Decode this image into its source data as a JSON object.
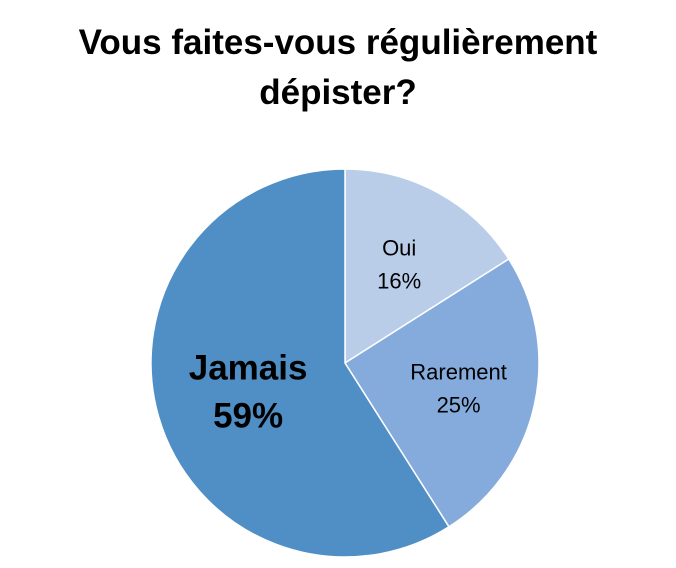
{
  "chart_data": {
    "type": "pie",
    "title_lines": [
      "Vous faites-vous régulièrement",
      "dépister?"
    ],
    "slices": [
      {
        "label": "Oui",
        "value": 16,
        "value_label": "16%",
        "color": "#b9cde9",
        "emphasis": false
      },
      {
        "label": "Rarement",
        "value": 25,
        "value_label": "25%",
        "color": "#85abdc",
        "emphasis": false
      },
      {
        "label": "Jamais",
        "value": 59,
        "value_label": "59%",
        "color": "#4f8fc6",
        "emphasis": true
      }
    ],
    "start_angle": "12 o'clock",
    "direction": "clockwise",
    "legend": "none",
    "slice_border_color": "#ffffff"
  }
}
